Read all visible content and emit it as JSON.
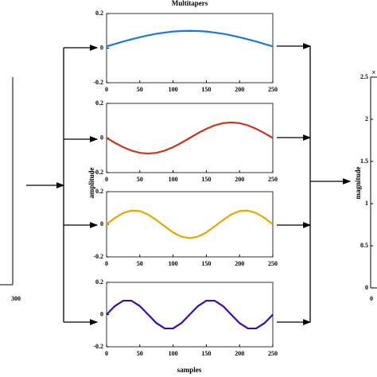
{
  "chart_data": [
    {
      "type": "line",
      "title": "Multitapers",
      "x": [
        0,
        12.5,
        25,
        37.5,
        50,
        62.5,
        75,
        87.5,
        100,
        112.5,
        125,
        137.5,
        150,
        162.5,
        175,
        187.5,
        200,
        212.5,
        225,
        237.5,
        250
      ],
      "series": [
        {
          "color": "#1f78d8",
          "values": [
            0.01,
            0.024,
            0.038,
            0.051,
            0.063,
            0.074,
            0.083,
            0.09,
            0.096,
            0.099,
            0.1,
            0.099,
            0.096,
            0.09,
            0.083,
            0.074,
            0.063,
            0.051,
            0.038,
            0.024,
            0.01
          ]
        }
      ],
      "xlim": [
        0,
        250
      ],
      "ylim": [
        -0.2,
        0.2
      ],
      "xticks": [
        0,
        50,
        100,
        150,
        200,
        250
      ],
      "yticks": [
        -0.2,
        0,
        0.2
      ]
    },
    {
      "type": "line",
      "x": [
        0,
        12.5,
        25,
        37.5,
        50,
        62.5,
        75,
        87.5,
        100,
        112.5,
        125,
        137.5,
        150,
        162.5,
        175,
        187.5,
        200,
        212.5,
        225,
        237.5,
        250
      ],
      "series": [
        {
          "color": "#c4361a",
          "values": [
            0,
            -0.028,
            -0.053,
            -0.073,
            -0.086,
            -0.09,
            -0.086,
            -0.073,
            -0.053,
            -0.028,
            0,
            0.028,
            0.053,
            0.073,
            0.086,
            0.09,
            0.086,
            0.073,
            0.053,
            0.028,
            0
          ]
        }
      ],
      "xlim": [
        0,
        250
      ],
      "ylim": [
        -0.2,
        0.2
      ],
      "xticks": [
        0,
        50,
        100,
        150,
        200,
        250
      ],
      "yticks": [
        -0.2,
        0,
        0.2
      ],
      "ylabel": "amplitude"
    },
    {
      "type": "line",
      "x": [
        0,
        12.5,
        25,
        37.5,
        50,
        62.5,
        75,
        87.5,
        100,
        112.5,
        125,
        137.5,
        150,
        162.5,
        175,
        187.5,
        200,
        212.5,
        225,
        237.5,
        250
      ],
      "series": [
        {
          "color": "#e6a700",
          "values": [
            0,
            0.039,
            0.069,
            0.084,
            0.081,
            0.06,
            0.026,
            -0.013,
            -0.05,
            -0.076,
            -0.085,
            -0.076,
            -0.05,
            -0.013,
            0.026,
            0.06,
            0.081,
            0.084,
            0.069,
            0.039,
            0
          ]
        }
      ],
      "xlim": [
        0,
        250
      ],
      "ylim": [
        -0.2,
        0.2
      ],
      "xticks": [
        0,
        50,
        100,
        150,
        200,
        250
      ],
      "yticks": [
        -0.2,
        0,
        0.2
      ]
    },
    {
      "type": "line",
      "x": [
        0,
        12.5,
        25,
        37.5,
        50,
        62.5,
        75,
        87.5,
        100,
        112.5,
        125,
        137.5,
        150,
        162.5,
        175,
        187.5,
        200,
        212.5,
        225,
        237.5,
        250
      ],
      "series": [
        {
          "color": "#3a0ca3",
          "values": [
            0,
            0.053,
            0.086,
            0.086,
            0.053,
            0,
            -0.053,
            -0.086,
            -0.086,
            -0.053,
            0,
            0.053,
            0.086,
            0.086,
            0.053,
            0,
            -0.053,
            -0.086,
            -0.086,
            -0.053,
            0
          ]
        }
      ],
      "xlim": [
        0,
        250
      ],
      "ylim": [
        -0.2,
        0.2
      ],
      "xticks": [
        0,
        50,
        100,
        150,
        200,
        250
      ],
      "yticks": [
        -0.2,
        0,
        0.2
      ],
      "xlabel": "samples"
    },
    {
      "type": "frame",
      "xticks": [
        300
      ]
    },
    {
      "type": "frame",
      "ylabel": "magnitude",
      "annotation": "×",
      "ylim": [
        0,
        2.5
      ],
      "yticks": [
        0,
        0.5,
        1,
        1.5,
        2,
        2.5
      ],
      "xticks": [
        0
      ]
    }
  ]
}
